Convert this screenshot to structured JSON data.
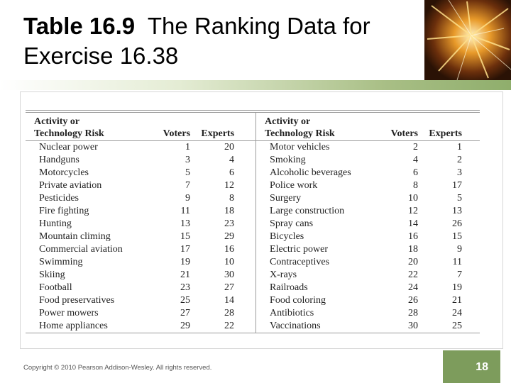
{
  "title": {
    "prefix": "Table 16.9",
    "line1": "The Ranking Data for",
    "line2": "Exercise 16.38"
  },
  "table": {
    "headers": {
      "activity_line1": "Activity or",
      "activity_line2": "Technology Risk",
      "voters": "Voters",
      "experts": "Experts"
    },
    "rows": [
      {
        "a1": "Nuclear power",
        "v1": "1",
        "e1": "20",
        "a2": "Motor vehicles",
        "v2": "2",
        "e2": "1"
      },
      {
        "a1": "Handguns",
        "v1": "3",
        "e1": "4",
        "a2": "Smoking",
        "v2": "4",
        "e2": "2"
      },
      {
        "a1": "Motorcycles",
        "v1": "5",
        "e1": "6",
        "a2": "Alcoholic beverages",
        "v2": "6",
        "e2": "3"
      },
      {
        "a1": "Private aviation",
        "v1": "7",
        "e1": "12",
        "a2": "Police work",
        "v2": "8",
        "e2": "17"
      },
      {
        "a1": "Pesticides",
        "v1": "9",
        "e1": "8",
        "a2": "Surgery",
        "v2": "10",
        "e2": "5"
      },
      {
        "a1": "Fire fighting",
        "v1": "11",
        "e1": "18",
        "a2": "Large construction",
        "v2": "12",
        "e2": "13"
      },
      {
        "a1": "Hunting",
        "v1": "13",
        "e1": "23",
        "a2": "Spray cans",
        "v2": "14",
        "e2": "26"
      },
      {
        "a1": "Mountain climing",
        "v1": "15",
        "e1": "29",
        "a2": "Bicycles",
        "v2": "16",
        "e2": "15"
      },
      {
        "a1": "Commercial aviation",
        "v1": "17",
        "e1": "16",
        "a2": "Electric power",
        "v2": "18",
        "e2": "9"
      },
      {
        "a1": "Swimming",
        "v1": "19",
        "e1": "10",
        "a2": "Contraceptives",
        "v2": "20",
        "e2": "11"
      },
      {
        "a1": "Skiing",
        "v1": "21",
        "e1": "30",
        "a2": "X-rays",
        "v2": "22",
        "e2": "7"
      },
      {
        "a1": "Football",
        "v1": "23",
        "e1": "27",
        "a2": "Railroads",
        "v2": "24",
        "e2": "19"
      },
      {
        "a1": "Food preservatives",
        "v1": "25",
        "e1": "14",
        "a2": "Food coloring",
        "v2": "26",
        "e2": "21"
      },
      {
        "a1": "Power mowers",
        "v1": "27",
        "e1": "28",
        "a2": "Antibiotics",
        "v2": "28",
        "e2": "24"
      },
      {
        "a1": "Home appliances",
        "v1": "29",
        "e1": "22",
        "a2": "Vaccinations",
        "v2": "30",
        "e2": "25"
      }
    ]
  },
  "footer": {
    "copyright": "Copyright © 2010 Pearson Addison-Wesley. All rights reserved.",
    "page_number": "18"
  },
  "colors": {
    "accent_green": "#7d9c5c",
    "decor_dark": "#3b1d08"
  }
}
